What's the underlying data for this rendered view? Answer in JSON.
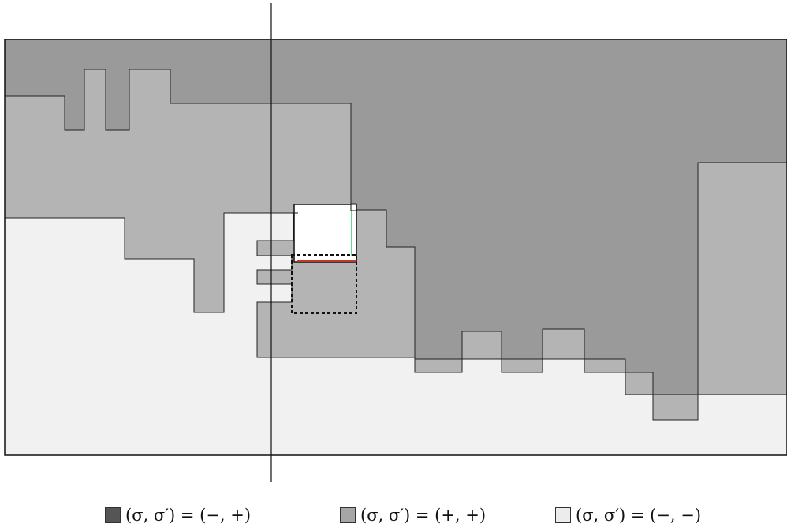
{
  "colors": {
    "dark_region": "#9a9a9a",
    "mid_region": "#b4b4b4",
    "light_region": "#f1f1f1",
    "white_box": "#ffffff",
    "red_edge": "#c0392b",
    "green_edge": "#2ecc71",
    "swatch_dark": "#555555",
    "swatch_mid": "#a6a6a6",
    "swatch_light": "#ececec"
  },
  "legend": {
    "items": [
      {
        "label": "(σ, σ′) = (−, +)",
        "color_key": "swatch_dark"
      },
      {
        "label": "(σ, σ′) = (+, +)",
        "color_key": "swatch_mid"
      },
      {
        "label": "(σ, σ′) = (−, −)",
        "color_key": "swatch_light"
      }
    ]
  }
}
